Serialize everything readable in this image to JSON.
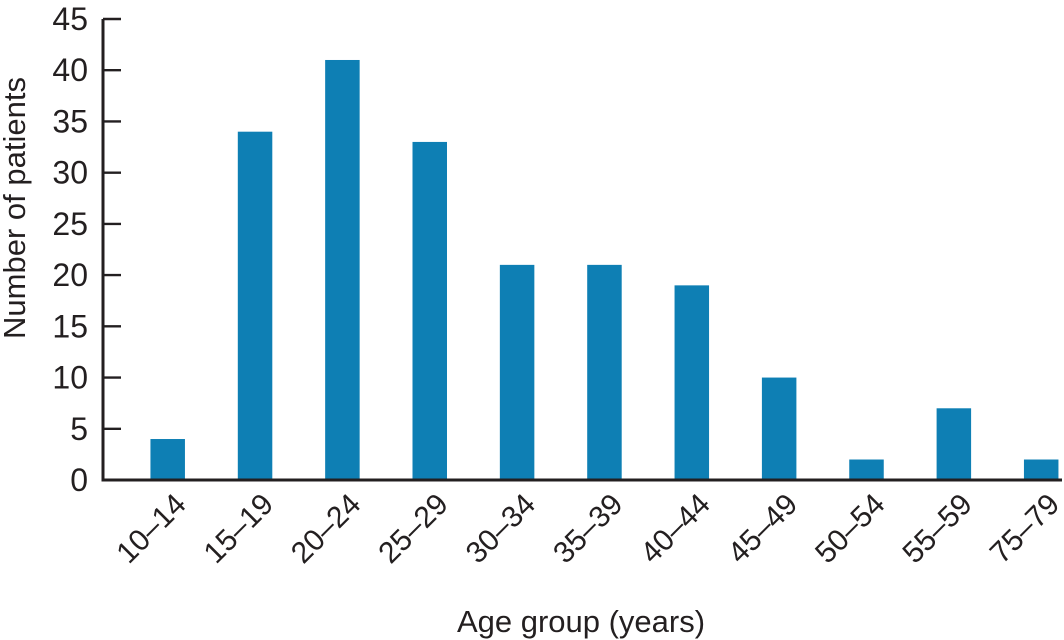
{
  "chart_data": {
    "type": "bar",
    "title": "",
    "xlabel": "Age group (years)",
    "ylabel": "Number of patients",
    "categories": [
      "10–14",
      "15–19",
      "20–24",
      "25–29",
      "30–34",
      "35–39",
      "40–44",
      "45–49",
      "50–54",
      "55–59",
      "75–79"
    ],
    "values": [
      4,
      34,
      41,
      33,
      21,
      21,
      19,
      10,
      2,
      7,
      2
    ],
    "ylim": [
      0,
      45
    ],
    "yticks": [
      0,
      5,
      10,
      15,
      20,
      25,
      30,
      35,
      40,
      45
    ],
    "grid": false,
    "legend": null,
    "bar_color": "#0e7fb4",
    "axis_color": "#231f20",
    "text_color": "#231f20"
  }
}
